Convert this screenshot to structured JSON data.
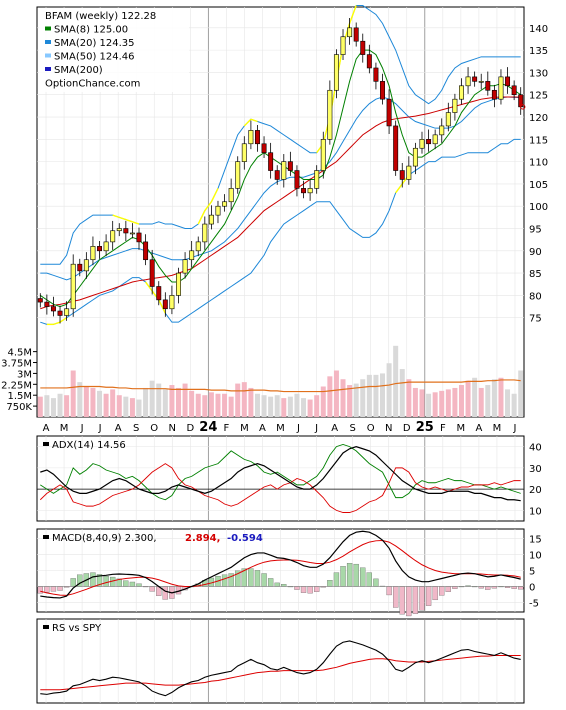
{
  "chart_data": [
    {
      "type": "candlestick",
      "panel": "price",
      "legend": [
        {
          "label": "BFAM (weekly) 122.28",
          "color": ""
        },
        {
          "label": "SMA(8) 125.00",
          "color": "#008000"
        },
        {
          "label": "SMA(20) 124.35",
          "color": "#1e88d8"
        },
        {
          "label": "SMA(50) 124.46",
          "color": "#87c8ff"
        },
        {
          "label": "SMA(200)",
          "color": "#1b1bbf"
        }
      ],
      "watermark": "OptionChance.com",
      "ylim": [
        70,
        144
      ],
      "y_ticks": [
        "140",
        "135",
        "130",
        "125",
        "120",
        "115",
        "110",
        "105",
        "100",
        "95",
        "90",
        "85",
        "80",
        "75"
      ],
      "volume_ticks": [
        "4.5M",
        "3.75M",
        "3M",
        "2.25M",
        "1.5M",
        "750K"
      ],
      "x_labels": [
        "A",
        "M",
        "J",
        "J",
        "A",
        "S",
        "O",
        "N",
        "D",
        "24",
        "F",
        "M",
        "A",
        "M",
        "J",
        "J",
        "A",
        "S",
        "O",
        "N",
        "D",
        "25",
        "F",
        "M",
        "A",
        "M",
        "J"
      ],
      "close": [
        78.5,
        77.5,
        76.5,
        75.5,
        77,
        87,
        85.5,
        88,
        91,
        90,
        92,
        94.5,
        95,
        94,
        94,
        92,
        88,
        82,
        79,
        77,
        80,
        85,
        88,
        90,
        92,
        96,
        98,
        100,
        101,
        104,
        110,
        114,
        117,
        114,
        112,
        108,
        106,
        110,
        108,
        104,
        103,
        104,
        108,
        115,
        126,
        134,
        138,
        140,
        137,
        134,
        131,
        128,
        124,
        118,
        108,
        106,
        109,
        113,
        115,
        114,
        116,
        118,
        121,
        124,
        127,
        129,
        128,
        128,
        126,
        124,
        129,
        127,
        125,
        122.28
      ],
      "sma8": [
        80,
        79,
        78,
        77.5,
        78,
        80,
        82,
        84,
        86,
        88,
        89,
        90,
        91,
        92,
        93,
        92.5,
        91,
        89,
        86.5,
        84.5,
        83,
        83,
        84,
        86,
        88,
        90,
        92,
        94,
        96,
        99,
        102,
        106,
        109,
        111,
        112,
        111,
        110,
        109,
        108,
        107,
        106,
        106,
        106,
        107,
        111,
        116,
        122,
        128,
        133,
        135,
        135,
        134,
        131,
        127,
        121,
        116,
        112,
        111,
        111,
        112,
        113,
        114,
        116,
        118,
        121,
        123,
        125,
        126,
        127,
        127,
        127.5,
        127,
        126,
        125
      ],
      "sma20": [
        85,
        85,
        84.5,
        84,
        83.5,
        84,
        85,
        86,
        87,
        88,
        88.5,
        89,
        89.5,
        90,
        90.5,
        90.5,
        90,
        89.5,
        89,
        88.5,
        88,
        88,
        88,
        88.5,
        89,
        89.5,
        90,
        91,
        92,
        93.5,
        95,
        97,
        99,
        101,
        103,
        104.5,
        105.5,
        106,
        106.5,
        106.5,
        106.5,
        107,
        107.5,
        108.5,
        110,
        112,
        114.5,
        117,
        119.5,
        121.5,
        123,
        124,
        124.5,
        124,
        123,
        121.5,
        120,
        119,
        118.5,
        118,
        117.5,
        117.5,
        117.5,
        118,
        119,
        120.5,
        122,
        123,
        123.5,
        124,
        124.3,
        124.5,
        124.4,
        124.35
      ],
      "sma50": [
        77,
        77.5,
        77.8,
        78,
        78.3,
        78.7,
        79,
        79.5,
        80,
        80.5,
        81,
        81.5,
        82,
        82.5,
        83,
        83.3,
        83.5,
        83.8,
        84,
        84.2,
        84.5,
        85,
        85.5,
        86,
        87,
        88,
        89,
        90,
        91,
        92,
        93,
        94.5,
        96,
        97.5,
        99,
        100,
        101,
        102,
        103,
        104,
        105,
        106,
        107,
        108,
        109,
        110,
        111.5,
        113,
        114.5,
        116,
        117,
        118,
        118.8,
        119.3,
        119.6,
        119.8,
        120,
        120.2,
        120.5,
        120.8,
        121.2,
        121.6,
        122,
        122.4,
        122.8,
        123.2,
        123.6,
        124,
        124.2,
        124.4,
        124.5,
        124.5,
        124.5,
        124.46
      ],
      "bb_upper": [
        87,
        87,
        87,
        87,
        89,
        94,
        96,
        97,
        98,
        98,
        98,
        98,
        97.5,
        97,
        96.5,
        96,
        96,
        96,
        96.5,
        96,
        96,
        95.5,
        95,
        95,
        96,
        99,
        101,
        104,
        108,
        112,
        116,
        118,
        119.5,
        119,
        118.5,
        118,
        117,
        116,
        115,
        114,
        113,
        112,
        112,
        114,
        120,
        128,
        136,
        141,
        145,
        145,
        144,
        143,
        141,
        138,
        135,
        131,
        127,
        125,
        124,
        123,
        124,
        126,
        129,
        131,
        132,
        132.5,
        133,
        133.5,
        133.5,
        133.5,
        133.5,
        133.5,
        133.5,
        133.5
      ],
      "bb_lower": [
        74,
        73.5,
        73.5,
        74,
        75,
        76,
        77,
        78,
        79,
        80,
        80.5,
        81,
        82,
        83,
        84,
        84,
        83,
        81,
        79,
        76,
        74,
        74,
        75,
        76,
        77,
        78,
        79,
        80,
        81,
        82,
        83,
        84,
        85,
        87,
        89,
        92,
        94,
        96,
        97,
        98,
        99,
        100,
        101,
        101,
        101,
        99,
        97,
        95,
        94,
        93,
        93,
        94,
        96,
        99,
        103,
        105,
        107,
        108,
        109,
        110,
        110,
        111,
        111,
        111,
        111.5,
        112,
        112,
        112,
        112,
        113,
        114,
        114,
        115,
        115
      ],
      "volume_m": [
        1.4,
        1.5,
        1.3,
        1.6,
        1.5,
        3.2,
        2.4,
        2.1,
        2.0,
        1.8,
        1.6,
        1.9,
        1.5,
        1.4,
        1.3,
        1.2,
        2.0,
        2.5,
        2.3,
        1.9,
        2.2,
        2.0,
        2.3,
        1.8,
        1.6,
        1.5,
        1.7,
        1.6,
        1.6,
        1.4,
        2.3,
        2.4,
        2.0,
        1.6,
        1.5,
        1.4,
        1.5,
        1.3,
        1.4,
        1.6,
        1.3,
        1.2,
        1.5,
        2.1,
        2.8,
        3.2,
        2.6,
        2.2,
        2.3,
        2.6,
        2.9,
        2.9,
        3.0,
        3.7,
        4.9,
        3.3,
        2.6,
        2.0,
        1.9,
        1.6,
        1.7,
        1.8,
        1.9,
        2.0,
        2.2,
        2.5,
        2.7,
        2.0,
        2.2,
        2.6,
        2.7,
        1.9,
        1.6,
        3.2
      ],
      "volume_avg_m": [
        2.0,
        2.0,
        2.0,
        2.0,
        2.0,
        2.05,
        2.1,
        2.1,
        2.1,
        2.1,
        2.05,
        2.05,
        2.0,
        2.0,
        1.95,
        1.95,
        1.95,
        1.95,
        1.95,
        1.95,
        1.9,
        1.9,
        1.9,
        1.9,
        1.9,
        1.9,
        1.85,
        1.85,
        1.85,
        1.8,
        1.8,
        1.8,
        1.85,
        1.85,
        1.85,
        1.8,
        1.8,
        1.75,
        1.75,
        1.75,
        1.75,
        1.75,
        1.75,
        1.75,
        1.8,
        1.85,
        1.9,
        1.95,
        2.0,
        2.05,
        2.1,
        2.1,
        2.15,
        2.2,
        2.3,
        2.35,
        2.4,
        2.4,
        2.4,
        2.4,
        2.4,
        2.4,
        2.4,
        2.4,
        2.4,
        2.45,
        2.45,
        2.45,
        2.5,
        2.5,
        2.55,
        2.55,
        2.55,
        2.5
      ]
    },
    {
      "type": "line",
      "panel": "adx",
      "title": "ADX(14) 14.56",
      "ylim": [
        5,
        45
      ],
      "y_ticks": [
        "40",
        "30",
        "20",
        "10"
      ],
      "ref_line": 20,
      "adx": [
        28,
        29,
        27,
        24,
        21,
        19,
        18,
        18,
        19,
        20,
        22,
        24,
        25,
        24,
        22,
        20,
        19,
        18,
        18,
        19,
        21,
        22,
        21,
        20,
        19,
        18,
        19,
        21,
        23,
        25,
        28,
        30,
        31,
        32,
        31,
        29,
        27,
        25,
        23,
        21,
        20,
        20,
        22,
        25,
        29,
        33,
        37,
        39,
        40,
        39,
        38,
        36,
        33,
        30,
        27,
        24,
        22,
        20,
        19,
        18,
        18,
        18,
        19,
        19,
        19,
        19,
        18,
        18,
        17,
        16,
        16,
        15,
        15,
        14.56
      ],
      "plus_di": [
        22,
        20,
        18,
        20,
        22,
        30,
        27,
        29,
        32,
        31,
        29,
        28,
        27,
        25,
        26,
        24,
        21,
        18,
        16,
        15,
        17,
        22,
        25,
        26,
        28,
        30,
        31,
        32,
        35,
        38,
        36,
        34,
        33,
        31,
        28,
        27,
        28,
        26,
        24,
        22,
        22,
        24,
        26,
        30,
        36,
        40,
        41,
        40,
        38,
        35,
        32,
        30,
        28,
        22,
        16,
        16,
        18,
        22,
        24,
        23,
        23,
        24,
        25,
        24,
        24,
        23,
        22,
        22,
        21,
        20,
        21,
        20,
        19,
        18
      ],
      "minus_di": [
        15,
        18,
        20,
        22,
        20,
        14,
        13,
        12,
        12,
        13,
        15,
        17,
        18,
        19,
        20,
        22,
        25,
        28,
        30,
        32,
        30,
        25,
        22,
        21,
        19,
        17,
        16,
        15,
        13,
        12,
        13,
        15,
        17,
        19,
        21,
        22,
        20,
        22,
        23,
        25,
        24,
        22,
        19,
        16,
        12,
        10,
        9,
        9,
        10,
        12,
        14,
        15,
        17,
        23,
        30,
        30,
        28,
        23,
        21,
        20,
        21,
        20,
        19,
        20,
        21,
        21,
        22,
        22,
        22,
        23,
        22,
        23,
        24,
        24
      ]
    },
    {
      "type": "line",
      "panel": "macd",
      "title": "MACD(8,40,9) 2.300,",
      "values_label": [
        "2.894,",
        "-0.594"
      ],
      "values_color": [
        "#d40000",
        "#1b1bbf"
      ],
      "ylim": [
        -8,
        18
      ],
      "y_ticks": [
        "15",
        "10",
        "5",
        "0",
        "-5"
      ],
      "macd": [
        -3.0,
        -3.3,
        -3.5,
        -3.6,
        -3.0,
        -0.5,
        1.0,
        2.0,
        3.0,
        3.3,
        3.5,
        3.8,
        3.9,
        3.8,
        3.7,
        3.5,
        2.8,
        1.5,
        0.0,
        -1.5,
        -2.0,
        -1.5,
        -0.8,
        0.0,
        0.8,
        2.0,
        3.0,
        4.0,
        5.0,
        6.0,
        7.5,
        9.0,
        10.0,
        10.5,
        10.5,
        9.8,
        9.0,
        8.8,
        8.3,
        7.5,
        6.5,
        6.0,
        6.0,
        7.0,
        9.0,
        11.5,
        14.0,
        16.0,
        17.0,
        17.3,
        17.0,
        16.0,
        14.5,
        12.0,
        8.0,
        5.0,
        3.0,
        2.0,
        1.5,
        1.5,
        2.0,
        2.5,
        3.0,
        3.5,
        4.0,
        4.2,
        4.0,
        3.5,
        3.0,
        3.2,
        3.6,
        3.2,
        2.8,
        2.3
      ],
      "signal": [
        -1.5,
        -2.0,
        -2.4,
        -2.7,
        -2.8,
        -2.3,
        -1.6,
        -0.9,
        -0.1,
        0.6,
        1.2,
        1.7,
        2.2,
        2.5,
        2.7,
        2.9,
        2.9,
        2.6,
        2.1,
        1.4,
        0.7,
        0.2,
        0.0,
        0.0,
        0.2,
        0.6,
        1.1,
        1.7,
        2.4,
        3.1,
        4.0,
        5.0,
        6.0,
        6.9,
        7.6,
        8.0,
        8.2,
        8.3,
        8.3,
        8.2,
        7.9,
        7.5,
        7.2,
        7.2,
        7.6,
        8.4,
        9.5,
        10.8,
        12.0,
        13.1,
        13.9,
        14.3,
        14.4,
        13.9,
        12.7,
        11.2,
        9.6,
        8.1,
        6.8,
        5.8,
        5.0,
        4.5,
        4.2,
        4.0,
        4.0,
        4.0,
        4.0,
        3.9,
        3.7,
        3.6,
        3.6,
        3.5,
        3.3,
        2.9
      ],
      "hist_pos_color": "#a8d8a8",
      "hist_neg_color": "#f0b8c8"
    },
    {
      "type": "line",
      "panel": "rs",
      "title": "RS vs SPY",
      "ylim": [
        0,
        1
      ],
      "rs": [
        0.08,
        0.07,
        0.09,
        0.1,
        0.12,
        0.2,
        0.22,
        0.26,
        0.3,
        0.28,
        0.3,
        0.33,
        0.32,
        0.3,
        0.28,
        0.26,
        0.2,
        0.12,
        0.08,
        0.05,
        0.1,
        0.17,
        0.22,
        0.26,
        0.28,
        0.33,
        0.36,
        0.38,
        0.4,
        0.42,
        0.5,
        0.55,
        0.6,
        0.55,
        0.52,
        0.46,
        0.44,
        0.48,
        0.44,
        0.4,
        0.38,
        0.4,
        0.45,
        0.55,
        0.68,
        0.8,
        0.86,
        0.88,
        0.85,
        0.82,
        0.78,
        0.74,
        0.68,
        0.58,
        0.45,
        0.42,
        0.48,
        0.55,
        0.58,
        0.55,
        0.58,
        0.62,
        0.66,
        0.7,
        0.74,
        0.75,
        0.72,
        0.7,
        0.68,
        0.66,
        0.7,
        0.66,
        0.62,
        0.6
      ],
      "rs_ma": [
        0.14,
        0.14,
        0.14,
        0.14,
        0.15,
        0.16,
        0.17,
        0.18,
        0.19,
        0.2,
        0.21,
        0.22,
        0.23,
        0.24,
        0.24,
        0.24,
        0.24,
        0.23,
        0.22,
        0.21,
        0.21,
        0.21,
        0.22,
        0.23,
        0.24,
        0.25,
        0.27,
        0.28,
        0.3,
        0.32,
        0.34,
        0.36,
        0.38,
        0.4,
        0.41,
        0.42,
        0.42,
        0.43,
        0.43,
        0.43,
        0.43,
        0.43,
        0.43,
        0.44,
        0.46,
        0.48,
        0.51,
        0.54,
        0.56,
        0.58,
        0.6,
        0.61,
        0.61,
        0.6,
        0.58,
        0.57,
        0.56,
        0.56,
        0.56,
        0.57,
        0.58,
        0.59,
        0.6,
        0.61,
        0.62,
        0.63,
        0.64,
        0.65,
        0.65,
        0.66,
        0.66,
        0.66,
        0.66,
        0.66
      ]
    }
  ],
  "colors": {
    "up_candle": "#ffff66",
    "down_candle": "#c00000",
    "candle_edge": "#000000",
    "bb_high": "#ffff00",
    "sma50_alt": "#cc0000",
    "volume_up": "#f4b6c2",
    "volume_down": "#d9d9d9",
    "volume_avg": "#e0701c"
  }
}
